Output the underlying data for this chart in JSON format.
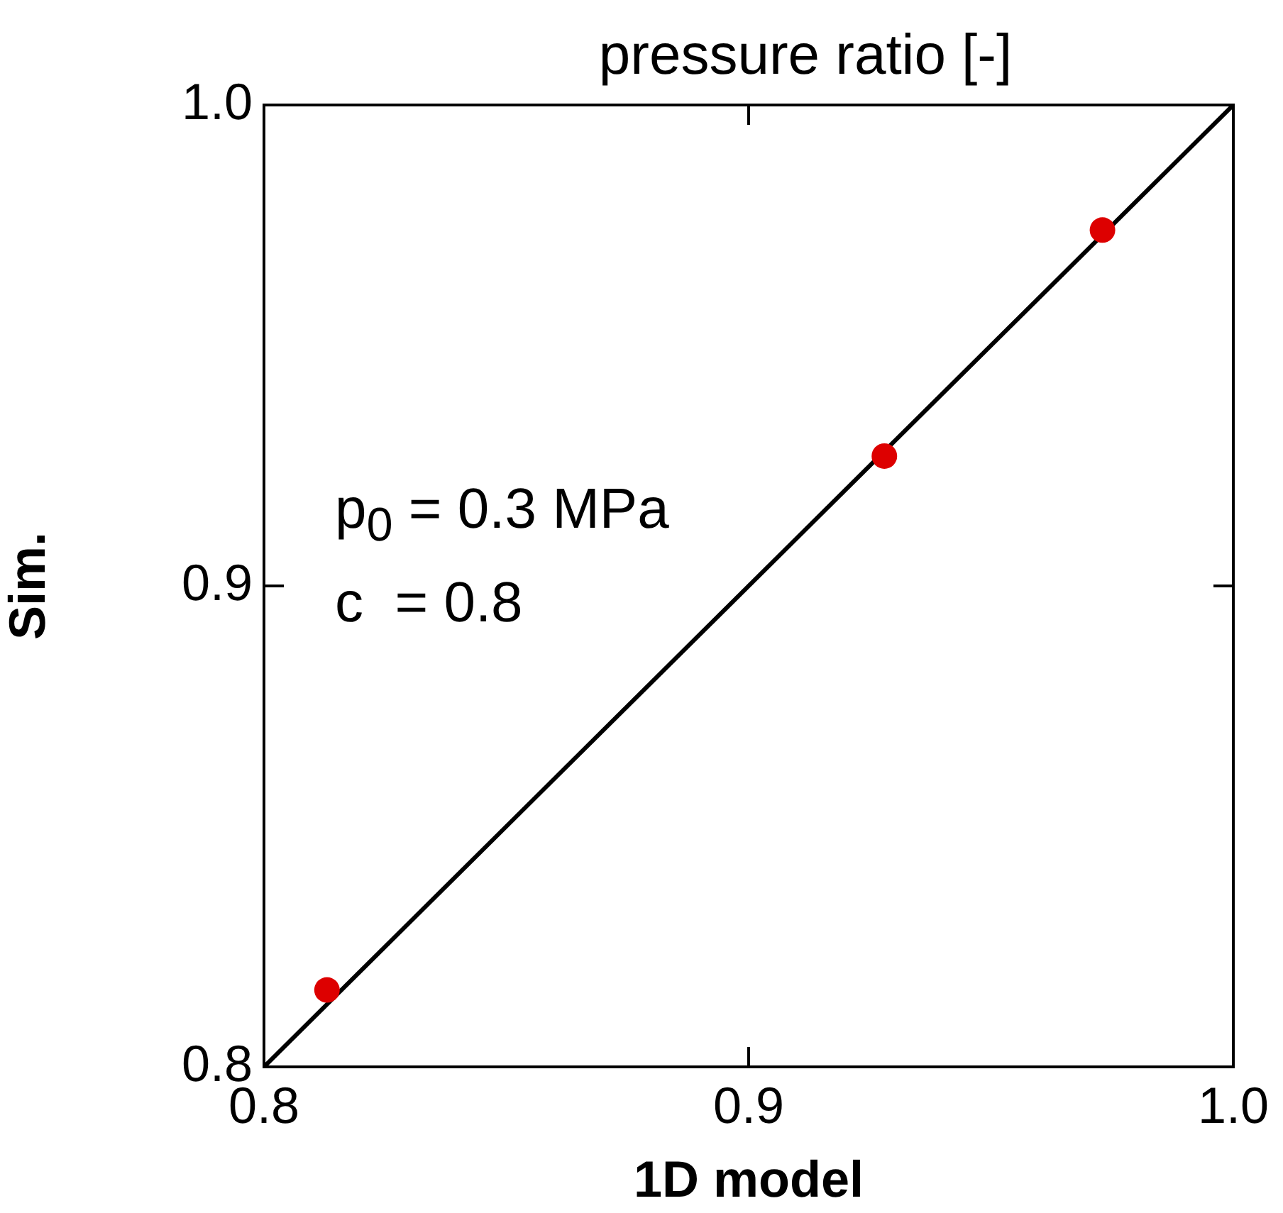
{
  "chart_data": {
    "type": "scatter",
    "title": "pressure ratio [-]",
    "xlabel": "1D model",
    "ylabel": "Sim.",
    "xlim": [
      0.8,
      1.0
    ],
    "ylim": [
      0.8,
      1.0
    ],
    "xticks": [
      0.8,
      0.9,
      {
        "value": 1,
        "label": "1.0"
      }
    ],
    "yticks": [
      0.8,
      0.9,
      {
        "value": 1,
        "label": "1.0"
      }
    ],
    "series": [
      {
        "type": "line",
        "color": "#000000",
        "marker": "none",
        "line_style": "solid",
        "x": [
          0.8,
          1.0
        ],
        "values": [
          0.8,
          1.0
        ]
      },
      {
        "type": "scatter",
        "color": "#dd0000",
        "marker": "circle",
        "x": [
          0.813,
          0.928,
          0.973
        ],
        "values": [
          0.816,
          0.927,
          0.974
        ]
      }
    ],
    "annotations": [
      "p$_{0}$ = 0.3 MPa",
      "c  = 0.8"
    ],
    "legend": false
  }
}
